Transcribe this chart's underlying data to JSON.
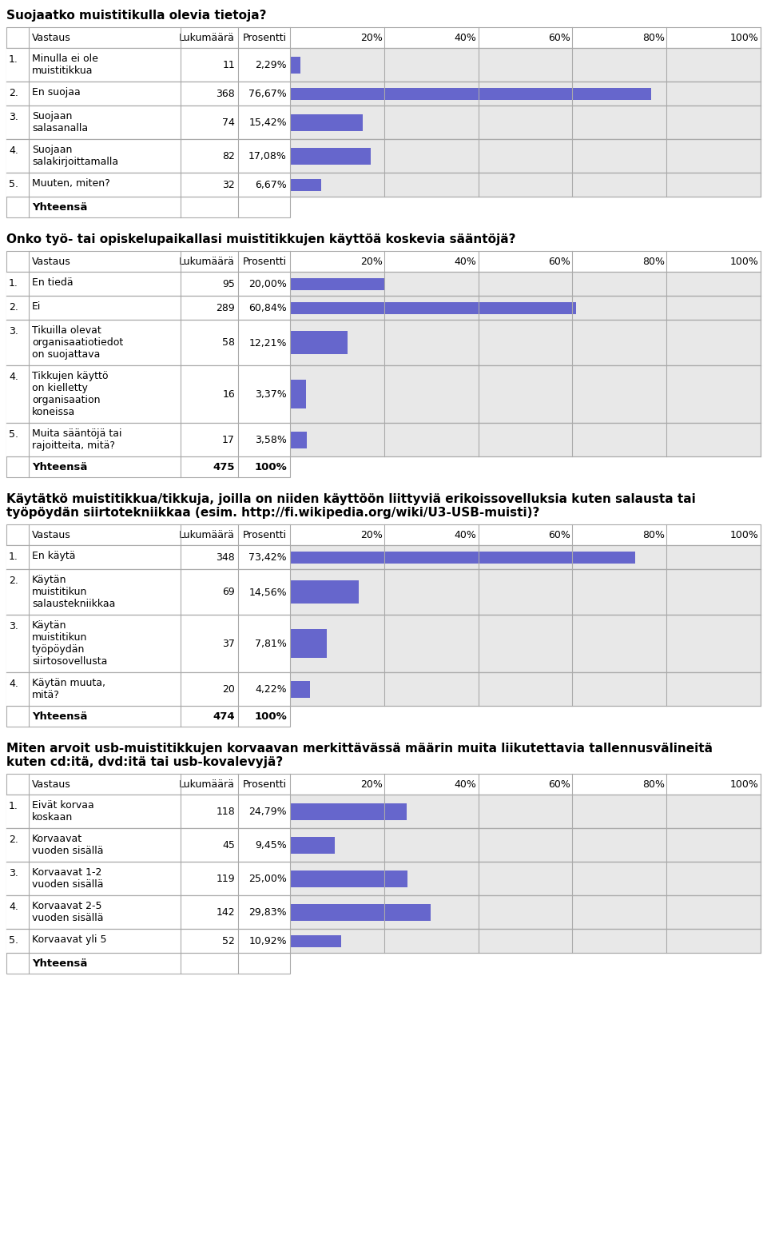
{
  "bg_color": "#ffffff",
  "bar_color": "#6666cc",
  "bar_bg_color": "#e8e8e8",
  "tables": [
    {
      "title": "Suojaatko muistitikulla olevia tietoja?",
      "rows": [
        {
          "num": "1.",
          "label": "Minulla ei ole\nmuistitikkua",
          "count": "11",
          "pct": "2,29%",
          "value": 2.29
        },
        {
          "num": "2.",
          "label": "En suojaa",
          "count": "368",
          "pct": "76,67%",
          "value": 76.67
        },
        {
          "num": "3.",
          "label": "Suojaan\nsalasanalla",
          "count": "74",
          "pct": "15,42%",
          "value": 15.42
        },
        {
          "num": "4.",
          "label": "Suojaan\nsalakirjoittamalla",
          "count": "82",
          "pct": "17,08%",
          "value": 17.08
        },
        {
          "num": "5.",
          "label": "Muuten, miten?",
          "count": "32",
          "pct": "6,67%",
          "value": 6.67
        }
      ],
      "footer_count": "",
      "footer_pct": ""
    },
    {
      "title": "Onko työ- tai opiskelupaikallasi muistitikkujen käyttöä koskevia sääntöjä?",
      "rows": [
        {
          "num": "1.",
          "label": "En tiedä",
          "count": "95",
          "pct": "20,00%",
          "value": 20.0
        },
        {
          "num": "2.",
          "label": "Ei",
          "count": "289",
          "pct": "60,84%",
          "value": 60.84
        },
        {
          "num": "3.",
          "label": "Tikuilla olevat\norganisaatiotiedot\non suojattava",
          "count": "58",
          "pct": "12,21%",
          "value": 12.21
        },
        {
          "num": "4.",
          "label": "Tikkujen käyttö\non kielletty\norganisaation\nkoneissa",
          "count": "16",
          "pct": "3,37%",
          "value": 3.37
        },
        {
          "num": "5.",
          "label": "Muita sääntöjä tai\nrajoitteita, mitä?",
          "count": "17",
          "pct": "3,58%",
          "value": 3.58
        }
      ],
      "footer_count": "475",
      "footer_pct": "100%"
    },
    {
      "title": "Käytätkö muistitikkua/tikkuja, joilla on niiden käyttöön liittyviä erikoissovelluksia kuten salausta tai\ntyöpöydän siirtotekniikkaa (esim. http://fi.wikipedia.org/wiki/U3-USB-muisti)?",
      "rows": [
        {
          "num": "1.",
          "label": "En käytä",
          "count": "348",
          "pct": "73,42%",
          "value": 73.42
        },
        {
          "num": "2.",
          "label": "Käytän\nmuistitikun\nsalaustekniikkaa",
          "count": "69",
          "pct": "14,56%",
          "value": 14.56
        },
        {
          "num": "3.",
          "label": "Käytän\nmuistitikun\ntyöpöydän\nsiirtosovellusta",
          "count": "37",
          "pct": "7,81%",
          "value": 7.81
        },
        {
          "num": "4.",
          "label": "Käytän muuta,\nmitä?",
          "count": "20",
          "pct": "4,22%",
          "value": 4.22
        }
      ],
      "footer_count": "474",
      "footer_pct": "100%"
    },
    {
      "title": "Miten arvoit usb-muistitikkujen korvaavan merkittävässä määrin muita liikutettavia tallennusvälineitä\nkuten cd:itä, dvd:itä tai usb-kovalevyjä?",
      "rows": [
        {
          "num": "1.",
          "label": "Eivät korvaa\nkoskaan",
          "count": "118",
          "pct": "24,79%",
          "value": 24.79
        },
        {
          "num": "2.",
          "label": "Korvaavat\nvuoden sisällä",
          "count": "45",
          "pct": "9,45%",
          "value": 9.45
        },
        {
          "num": "3.",
          "label": "Korvaavat 1-2\nvuoden sisällä",
          "count": "119",
          "pct": "25,00%",
          "value": 25.0
        },
        {
          "num": "4.",
          "label": "Korvaavat 2-5\nvuoden sisällä",
          "count": "142",
          "pct": "29,83%",
          "value": 29.83
        },
        {
          "num": "5.",
          "label": "Korvaavat yli 5",
          "count": "52",
          "pct": "10,92%",
          "value": 10.92
        }
      ],
      "footer_count": "",
      "footer_pct": ""
    }
  ]
}
